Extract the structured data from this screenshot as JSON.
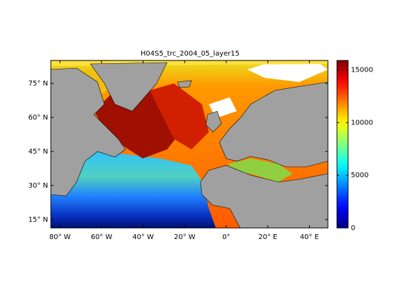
{
  "chart_data": {
    "type": "map",
    "title": "H04S5_trc_2004_05_layer15",
    "xlim": [
      -84.4,
      48.9
    ],
    "ylim": [
      11.3,
      85.1
    ],
    "xticks": [
      {
        "value": -80,
        "label": "80° W"
      },
      {
        "value": -60,
        "label": "60° W"
      },
      {
        "value": -40,
        "label": "40° W"
      },
      {
        "value": -20,
        "label": "20° W"
      },
      {
        "value": 0,
        "label": "0°"
      },
      {
        "value": 20,
        "label": "20° E"
      },
      {
        "value": 40,
        "label": "40° E"
      }
    ],
    "yticks": [
      {
        "value": 15,
        "label": "15° N"
      },
      {
        "value": 30,
        "label": "30° N"
      },
      {
        "value": 45,
        "label": "45° N"
      },
      {
        "value": 60,
        "label": "60° N"
      },
      {
        "value": 75,
        "label": "75° N"
      }
    ],
    "colorbar": {
      "clim": [
        0,
        15900
      ],
      "ticks": [
        0,
        5000,
        10000,
        15000
      ],
      "colormap": "jet"
    },
    "land_color": "#a0a0a0"
  }
}
